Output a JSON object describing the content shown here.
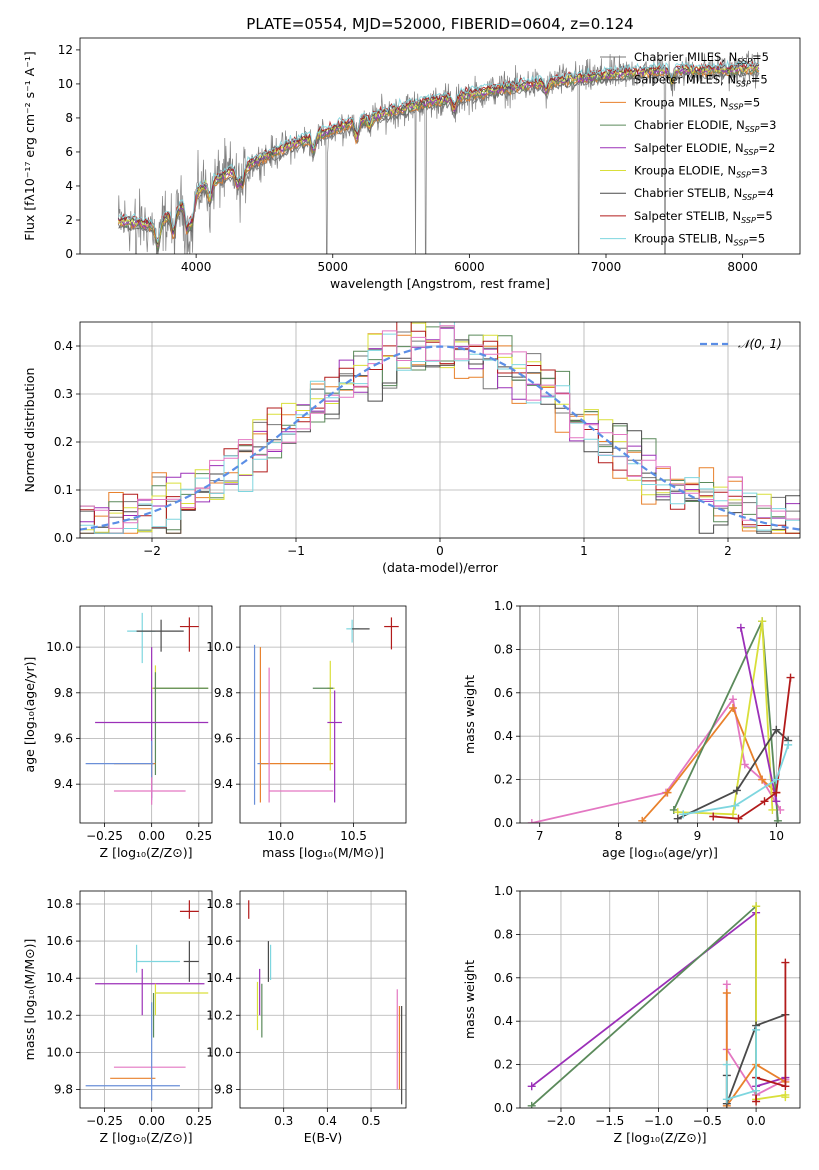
{
  "figure": {
    "title": "PLATE=0554, MJD=52000, FIBERID=0604, z=0.124"
  },
  "colors": {
    "chabrier_miles": "#777777",
    "salpeter_miles": "#666666",
    "kroupa_miles": "#e8812c",
    "chabrier_elodie": "#5b8a5b",
    "salpeter_elodie": "#9b30b8",
    "kroupa_elodie": "#d9df3a",
    "chabrier_stelib": "#4a4a4a",
    "salpeter_stelib": "#b21b1b",
    "kroupa_stelib": "#7ed6df",
    "pink": "#e377c2",
    "blue": "#6a8fd8",
    "normal": "#5b8ee6"
  },
  "chart_data": [
    {
      "id": "spectrum",
      "type": "line",
      "title": "PLATE=0554, MJD=52000, FIBERID=0604, z=0.124",
      "xlabel": "wavelength [Angstrom, rest frame]",
      "ylabel": "Flux [fλ10⁻¹⁷ erg cm⁻² s⁻¹ A⁻¹]",
      "xlim": [
        3150,
        8420
      ],
      "ylim": [
        0,
        12.7
      ],
      "xticks": [
        4000,
        5000,
        6000,
        7000,
        8000
      ],
      "yticks": [
        0,
        2,
        4,
        6,
        8,
        10,
        12
      ],
      "legend_position": "top-right",
      "legend": [
        {
          "label": "Chabrier MILES, N",
          "sub": "SSP",
          "tail": "=5",
          "color": "#777777"
        },
        {
          "label": "Salpeter MILES, N",
          "sub": "SSP",
          "tail": "=5",
          "color": "#666666"
        },
        {
          "label": "Kroupa MILES, N",
          "sub": "SSP",
          "tail": "=5",
          "color": "#e8812c"
        },
        {
          "label": "Chabrier ELODIE, N",
          "sub": "SSP",
          "tail": "=3",
          "color": "#5b8a5b"
        },
        {
          "label": "Salpeter ELODIE, N",
          "sub": "SSP",
          "tail": "=2",
          "color": "#9b30b8"
        },
        {
          "label": "Kroupa ELODIE, N",
          "sub": "SSP",
          "tail": "=3",
          "color": "#d9df3a"
        },
        {
          "label": "Chabrier STELIB, N",
          "sub": "SSP",
          "tail": "=4",
          "color": "#4a4a4a"
        },
        {
          "label": "Salpeter STELIB, N",
          "sub": "SSP",
          "tail": "=5",
          "color": "#b21b1b"
        },
        {
          "label": "Kroupa STELIB, N",
          "sub": "SSP",
          "tail": "=5",
          "color": "#7ed6df"
        }
      ],
      "continuum": {
        "x": [
          3450,
          3600,
          3700,
          3800,
          3900,
          4000,
          4100,
          4200,
          4300,
          4500,
          4700,
          4900,
          5100,
          5300,
          5500,
          5700,
          5900,
          6100,
          6300,
          6500,
          6700,
          6900,
          7100,
          7300,
          7500,
          7700,
          7900,
          8100
        ],
        "y": [
          1.9,
          1.8,
          1.6,
          2.2,
          2.8,
          3.6,
          4.2,
          4.6,
          4.9,
          5.7,
          6.4,
          7.0,
          7.6,
          8.1,
          8.5,
          8.9,
          9.2,
          9.5,
          9.8,
          10.0,
          10.2,
          10.4,
          10.6,
          10.7,
          10.8,
          10.8,
          10.8,
          10.9
        ]
      },
      "data_range": [
        3430,
        8120
      ]
    },
    {
      "id": "residuals",
      "type": "step",
      "xlabel": "(data-model)/error",
      "ylabel": "Normed distribution",
      "xlim": [
        -2.5,
        2.5
      ],
      "ylim": [
        0,
        0.45
      ],
      "xticks": [
        -2,
        -1,
        0,
        1,
        2
      ],
      "yticks": [
        0,
        0.1,
        0.2,
        0.3,
        0.4
      ],
      "legend_position": "top-right",
      "normal_label": "𝒩(0, 1)",
      "bin_width": 0.1
    },
    {
      "id": "age_vs_Z",
      "type": "errorbar",
      "xlabel": "Z [log₁₀(Z/Z⊙)]",
      "ylabel": "age  [log₁₀(age/yr)]",
      "xlim": [
        -0.38,
        0.32
      ],
      "ylim": [
        9.23,
        10.18
      ],
      "xticks": [
        -0.25,
        0.0,
        0.25
      ],
      "yticks": [
        9.4,
        9.6,
        9.8,
        10.0
      ],
      "points": [
        {
          "x": -0.05,
          "xerr": [
            0.08,
            0.07
          ],
          "y": 10.07,
          "yerr": [
            0.14,
            0.08
          ],
          "color": "#7ed6df"
        },
        {
          "x": 0.05,
          "xerr": [
            0.13,
            0.12
          ],
          "y": 10.07,
          "yerr": [
            0.09,
            0.05
          ],
          "color": "#4a4a4a"
        },
        {
          "x": 0.2,
          "xerr": [
            0.05,
            0.05
          ],
          "y": 10.09,
          "yerr": [
            0.11,
            0.04
          ],
          "color": "#b21b1b"
        },
        {
          "x": 0.02,
          "xerr": [
            0.02,
            0.28
          ],
          "y": 9.82,
          "yerr": [
            0.15,
            0.1
          ],
          "color": "#d9df3a"
        },
        {
          "x": 0.02,
          "xerr": [
            0.01,
            0.28
          ],
          "y": 9.82,
          "yerr": [
            0.38,
            0.07
          ],
          "color": "#5b8a5b"
        },
        {
          "x": 0.0,
          "xerr": [
            0.3,
            0.3
          ],
          "y": 9.67,
          "yerr": [
            0.33,
            0.33
          ],
          "color": "#9b30b8"
        },
        {
          "x": 0.0,
          "xerr": [
            0.2,
            0.02
          ],
          "y": 9.49,
          "yerr": [
            0.1,
            0.08
          ],
          "color": "#e8812c"
        },
        {
          "x": 0.0,
          "xerr": [
            0.35,
            0.01
          ],
          "y": 9.49,
          "yerr": [
            0.16,
            0.1
          ],
          "color": "#6a8fd8"
        },
        {
          "x": 0.0,
          "xerr": [
            0.2,
            0.18
          ],
          "y": 9.37,
          "yerr": [
            0.06,
            0.06
          ],
          "color": "#e377c2"
        }
      ]
    },
    {
      "id": "age_vs_mass",
      "type": "errorbar",
      "xlabel": "mass [log₁₀(M/M⊙)]",
      "ylabel": "",
      "xlim": [
        9.72,
        10.86
      ],
      "ylim": [
        9.23,
        10.18
      ],
      "xticks": [
        10.0,
        10.5
      ],
      "yticks": [
        9.4,
        9.6,
        9.8,
        10.0
      ],
      "points": [
        {
          "x": 10.49,
          "xerr": [
            0.04,
            0.05
          ],
          "y": 10.08,
          "yerr": [
            0.06,
            0.04
          ],
          "color": "#7ed6df"
        },
        {
          "x": 10.57,
          "xerr": [
            0.08,
            0.04
          ],
          "y": 10.08,
          "yerr": [
            0.0,
            0.0
          ],
          "color": "#4a4a4a"
        },
        {
          "x": 10.76,
          "xerr": [
            0.05,
            0.05
          ],
          "y": 10.09,
          "yerr": [
            0.1,
            0.04
          ],
          "color": "#b21b1b"
        },
        {
          "x": 10.34,
          "xerr": [
            0.02,
            0.03
          ],
          "y": 9.82,
          "yerr": [
            0.36,
            0.12
          ],
          "color": "#d9df3a"
        },
        {
          "x": 10.32,
          "xerr": [
            0.1,
            0.04
          ],
          "y": 9.82,
          "yerr": [
            0.0,
            0.0
          ],
          "color": "#5b8a5b"
        },
        {
          "x": 10.37,
          "xerr": [
            0.05,
            0.05
          ],
          "y": 9.67,
          "yerr": [
            0.35,
            0.14
          ],
          "color": "#9b30b8"
        },
        {
          "x": 9.86,
          "xerr": [
            0.0,
            0.0
          ],
          "y": 9.49,
          "yerr": [
            0.17,
            0.51
          ],
          "color": "#e8812c"
        },
        {
          "x": 9.82,
          "xerr": [
            0.0,
            0.0
          ],
          "y": 9.49,
          "yerr": [
            0.18,
            0.52
          ],
          "color": "#6a8fd8"
        },
        {
          "x": 9.92,
          "xerr": [
            0.08,
            0.0
          ],
          "y": 9.49,
          "yerr": [
            0.0,
            0.0
          ],
          "color": "#6a8fd8"
        },
        {
          "x": 9.86,
          "xerr": [
            0.0,
            0.5
          ],
          "y": 9.49,
          "yerr": [
            0.0,
            0.0
          ],
          "color": "#e8812c"
        },
        {
          "x": 10.14,
          "xerr": [
            0.22,
            0.22
          ],
          "y": 9.37,
          "yerr": [
            0.0,
            0.0
          ],
          "color": "#e377c2"
        },
        {
          "x": 9.92,
          "xerr": [
            0.0,
            0.0
          ],
          "y": 9.49,
          "yerr": [
            0.17,
            0.42
          ],
          "color": "#e377c2"
        }
      ]
    },
    {
      "id": "weight_vs_age",
      "type": "line",
      "xlabel": "age  [log₁₀(age/yr)]",
      "ylabel": "mass weight",
      "xlim": [
        6.75,
        10.3
      ],
      "ylim": [
        0,
        1.0
      ],
      "xticks": [
        7,
        8,
        9,
        10
      ],
      "yticks": [
        0.0,
        0.2,
        0.4,
        0.6,
        0.8,
        1.0
      ],
      "series": [
        {
          "color": "#e377c2",
          "x": [
            6.9,
            8.6,
            9.45,
            9.6,
            9.82,
            10.05
          ],
          "y": [
            0.0,
            0.14,
            0.57,
            0.27,
            0.2,
            0.06
          ]
        },
        {
          "color": "#e8812c",
          "x": [
            8.3,
            8.62,
            9.45,
            9.82,
            10.0
          ],
          "y": [
            0.01,
            0.14,
            0.53,
            0.2,
            0.14
          ]
        },
        {
          "color": "#5b8a5b",
          "x": [
            8.7,
            9.82,
            10.02
          ],
          "y": [
            0.06,
            0.93,
            0.01
          ]
        },
        {
          "color": "#d9df3a",
          "x": [
            8.75,
            9.45,
            9.82,
            9.95
          ],
          "y": [
            0.05,
            0.04,
            0.93,
            0.06
          ]
        },
        {
          "color": "#9b30b8",
          "x": [
            9.55,
            10.0
          ],
          "y": [
            0.9,
            0.1
          ]
        },
        {
          "color": "#4a4a4a",
          "x": [
            8.75,
            9.5,
            10.0,
            10.15
          ],
          "y": [
            0.02,
            0.15,
            0.43,
            0.38
          ]
        },
        {
          "color": "#b21b1b",
          "x": [
            9.2,
            9.52,
            9.85,
            10.0,
            10.18
          ],
          "y": [
            0.03,
            0.02,
            0.1,
            0.14,
            0.67
          ]
        },
        {
          "color": "#7ed6df",
          "x": [
            8.82,
            9.48,
            10.0,
            10.15
          ],
          "y": [
            0.04,
            0.08,
            0.2,
            0.36
          ]
        }
      ]
    },
    {
      "id": "mass_vs_Z",
      "type": "errorbar",
      "xlabel": "Z [log₁₀(Z/Z⊙)]",
      "ylabel": "mass [log₁₀(M/M⊙)]",
      "xlim": [
        -0.38,
        0.32
      ],
      "ylim": [
        9.7,
        10.87
      ],
      "xticks": [
        -0.25,
        0.0,
        0.25
      ],
      "yticks": [
        9.8,
        10.0,
        10.2,
        10.4,
        10.6,
        10.8
      ],
      "points": [
        {
          "x": 0.2,
          "xerr": [
            0.05,
            0.05
          ],
          "y": 10.76,
          "yerr": [
            0.04,
            0.06
          ],
          "color": "#b21b1b"
        },
        {
          "x": -0.08,
          "xerr": [
            0.0,
            0.0
          ],
          "y": 10.49,
          "yerr": [
            0.06,
            0.09
          ],
          "color": "#7ed6df"
        },
        {
          "x": 0.05,
          "xerr": [
            0.13,
            0.1
          ],
          "y": 10.49,
          "yerr": [
            0.0,
            0.0
          ],
          "color": "#7ed6df"
        },
        {
          "x": 0.2,
          "xerr": [
            0.03,
            0.05
          ],
          "y": 10.49,
          "yerr": [
            0.11,
            0.11
          ],
          "color": "#4a4a4a"
        },
        {
          "x": -0.05,
          "xerr": [
            0.25,
            0.33
          ],
          "y": 10.37,
          "yerr": [
            0.17,
            0.08
          ],
          "color": "#9b30b8"
        },
        {
          "x": 0.02,
          "xerr": [
            0.0,
            0.28
          ],
          "y": 10.32,
          "yerr": [
            0.12,
            0.05
          ],
          "color": "#d9df3a"
        },
        {
          "x": 0.01,
          "xerr": [
            0.0,
            0.0
          ],
          "y": 10.32,
          "yerr": [
            0.24,
            0.0
          ],
          "color": "#5b8a5b"
        },
        {
          "x": 0.0,
          "xerr": [
            0.2,
            0.18
          ],
          "y": 9.92,
          "yerr": [
            0.0,
            0.0
          ],
          "color": "#e377c2"
        },
        {
          "x": 0.0,
          "xerr": [
            0.22,
            0.02
          ],
          "y": 9.86,
          "yerr": [
            0.0,
            0.0
          ],
          "color": "#e8812c"
        },
        {
          "x": 0.0,
          "xerr": [
            0.35,
            0.15
          ],
          "y": 9.82,
          "yerr": [
            0.08,
            0.45
          ],
          "color": "#6a8fd8"
        }
      ]
    },
    {
      "id": "mass_vs_ebv",
      "type": "errorbar",
      "xlabel": "E(B-V)",
      "ylabel": "",
      "xlim": [
        0.2,
        0.58
      ],
      "ylim": [
        9.7,
        10.87
      ],
      "xticks": [
        0.3,
        0.4,
        0.5
      ],
      "yticks": [
        9.8,
        10.0,
        10.2,
        10.4,
        10.6,
        10.8
      ],
      "points": [
        {
          "x": 0.22,
          "xerr": [
            0.0,
            0.0
          ],
          "y": 10.76,
          "yerr": [
            0.04,
            0.06
          ],
          "color": "#b21b1b"
        },
        {
          "x": 0.265,
          "xerr": [
            0.0,
            0.0
          ],
          "y": 10.49,
          "yerr": [
            0.11,
            0.11
          ],
          "color": "#4a4a4a"
        },
        {
          "x": 0.27,
          "xerr": [
            0.0,
            0.0
          ],
          "y": 10.49,
          "yerr": [
            0.1,
            0.09
          ],
          "color": "#7ed6df"
        },
        {
          "x": 0.245,
          "xerr": [
            0.0,
            0.0
          ],
          "y": 10.37,
          "yerr": [
            0.17,
            0.08
          ],
          "color": "#9b30b8"
        },
        {
          "x": 0.24,
          "xerr": [
            0.0,
            0.0
          ],
          "y": 10.25,
          "yerr": [
            0.13,
            0.13
          ],
          "color": "#d9df3a"
        },
        {
          "x": 0.25,
          "xerr": [
            0.0,
            0.0
          ],
          "y": 10.2,
          "yerr": [
            0.12,
            0.17
          ],
          "color": "#5b8a5b"
        },
        {
          "x": 0.56,
          "xerr": [
            0.0,
            0.0
          ],
          "y": 10.1,
          "yerr": [
            0.3,
            0.24
          ],
          "color": "#e377c2"
        },
        {
          "x": 0.565,
          "xerr": [
            0.0,
            0.0
          ],
          "y": 10.0,
          "yerr": [
            0.2,
            0.25
          ],
          "color": "#e8812c"
        },
        {
          "x": 0.57,
          "xerr": [
            0.0,
            0.0
          ],
          "y": 9.97,
          "yerr": [
            0.25,
            0.28
          ],
          "color": "#4a4a4a"
        }
      ]
    },
    {
      "id": "weight_vs_Z",
      "type": "line",
      "xlabel": "Z [log₁₀(Z/Z⊙)]",
      "ylabel": "mass weight",
      "xlim": [
        -2.42,
        0.45
      ],
      "ylim": [
        0,
        1.0
      ],
      "xticks": [
        -2.0,
        -1.5,
        -1.0,
        -0.5,
        0.0
      ],
      "yticks": [
        0.0,
        0.2,
        0.4,
        0.6,
        0.8,
        1.0
      ],
      "series": [
        {
          "color": "#9b30b8",
          "x": [
            -2.3,
            0.0,
            0.0,
            0.3
          ],
          "y": [
            0.1,
            0.9,
            0.1,
            0.14
          ]
        },
        {
          "color": "#5b8a5b",
          "x": [
            -2.3,
            0.0,
            0.0
          ],
          "y": [
            0.01,
            0.93,
            0.06
          ]
        },
        {
          "color": "#e377c2",
          "x": [
            -0.3,
            -0.3,
            0.0,
            0.3
          ],
          "y": [
            0.57,
            0.27,
            0.06,
            0.13
          ]
        },
        {
          "color": "#e8812c",
          "x": [
            -0.3,
            -0.3,
            0.0,
            0.3
          ],
          "y": [
            0.53,
            0.01,
            0.2,
            0.12
          ]
        },
        {
          "color": "#d9df3a",
          "x": [
            0.0,
            0.0,
            0.3,
            0.3
          ],
          "y": [
            0.93,
            0.04,
            0.06,
            0.05
          ]
        },
        {
          "color": "#4a4a4a",
          "x": [
            -0.3,
            -0.3,
            0.0,
            0.3
          ],
          "y": [
            0.15,
            0.02,
            0.38,
            0.43
          ]
        },
        {
          "color": "#b21b1b",
          "x": [
            0.0,
            0.0,
            0.3,
            0.3
          ],
          "y": [
            0.03,
            0.14,
            0.1,
            0.67
          ]
        },
        {
          "color": "#7ed6df",
          "x": [
            -0.3,
            -0.3,
            0.0,
            0.0
          ],
          "y": [
            0.2,
            0.04,
            0.08,
            0.36
          ]
        }
      ]
    }
  ]
}
